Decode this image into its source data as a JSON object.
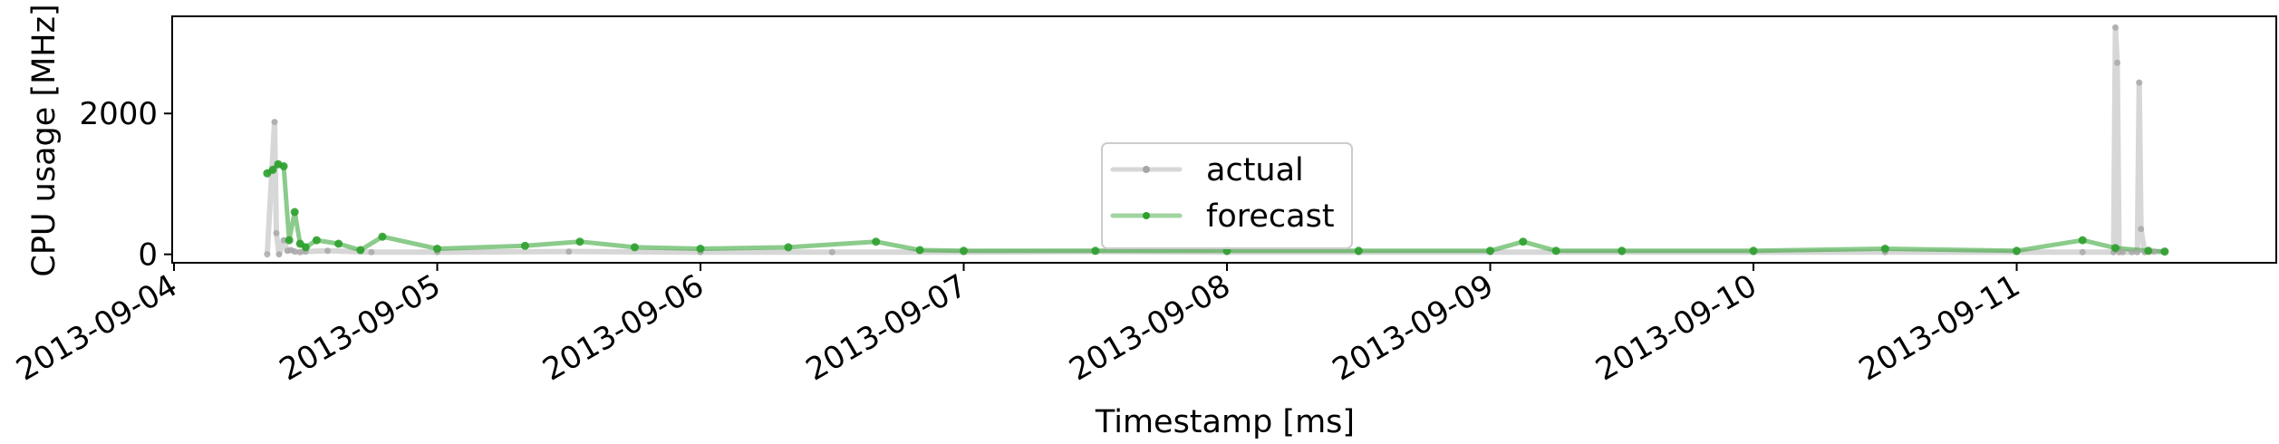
{
  "chart_data": {
    "type": "line",
    "title": "",
    "xlabel": "Timestamp [ms]",
    "ylabel": "CPU usage [MHz]",
    "x_ticks": [
      "2013-09-04",
      "2013-09-05",
      "2013-09-06",
      "2013-09-07",
      "2013-09-08",
      "2013-09-09",
      "2013-09-10",
      "2013-09-11"
    ],
    "y_ticks": [
      "0",
      "2000"
    ],
    "xlim": [
      "2013-09-03 23:50",
      "2013-09-11 23:40"
    ],
    "ylim": [
      -120,
      3380
    ],
    "grid": false,
    "legend_position": "center",
    "series": [
      {
        "name": "actual",
        "color": "#a6a6a6",
        "x": [
          "2013-09-04 08:30",
          "2013-09-04 09:10",
          "2013-09-04 09:20",
          "2013-09-04 09:35",
          "2013-09-04 10:00",
          "2013-09-04 10:20",
          "2013-09-04 10:40",
          "2013-09-04 11:00",
          "2013-09-04 11:30",
          "2013-09-04 12:00",
          "2013-09-04 14:00",
          "2013-09-04 18:00",
          "2013-09-05 00:00",
          "2013-09-05 12:00",
          "2013-09-06 00:00",
          "2013-09-06 12:00",
          "2013-09-07 00:00",
          "2013-09-07 12:00",
          "2013-09-08 00:00",
          "2013-09-08 12:00",
          "2013-09-09 00:00",
          "2013-09-09 12:00",
          "2013-09-10 00:00",
          "2013-09-10 12:00",
          "2013-09-11 00:00",
          "2013-09-11 06:00",
          "2013-09-11 08:50",
          "2013-09-11 09:00",
          "2013-09-11 09:10",
          "2013-09-11 09:20",
          "2013-09-11 09:40",
          "2013-09-11 10:30",
          "2013-09-11 11:00",
          "2013-09-11 11:10",
          "2013-09-11 11:20",
          "2013-09-11 11:40",
          "2013-09-11 12:30",
          "2013-09-11 13:30"
        ],
        "values": [
          0,
          1880,
          300,
          0,
          200,
          50,
          60,
          40,
          30,
          40,
          50,
          30,
          30,
          40,
          30,
          30,
          30,
          40,
          30,
          30,
          30,
          30,
          30,
          30,
          30,
          30,
          30,
          3220,
          2720,
          30,
          30,
          30,
          30,
          2440,
          360,
          30,
          40,
          30
        ]
      },
      {
        "name": "forecast",
        "color": "#2ca02c",
        "x": [
          "2013-09-04 08:30",
          "2013-09-04 09:00",
          "2013-09-04 09:30",
          "2013-09-04 10:00",
          "2013-09-04 10:30",
          "2013-09-04 11:00",
          "2013-09-04 11:30",
          "2013-09-04 12:00",
          "2013-09-04 13:00",
          "2013-09-04 15:00",
          "2013-09-04 17:00",
          "2013-09-04 19:00",
          "2013-09-05 00:00",
          "2013-09-05 08:00",
          "2013-09-05 13:00",
          "2013-09-05 18:00",
          "2013-09-06 00:00",
          "2013-09-06 08:00",
          "2013-09-06 16:00",
          "2013-09-06 20:00",
          "2013-09-07 00:00",
          "2013-09-07 12:00",
          "2013-09-08 00:00",
          "2013-09-08 12:00",
          "2013-09-09 00:00",
          "2013-09-09 03:00",
          "2013-09-09 06:00",
          "2013-09-09 12:00",
          "2013-09-10 00:00",
          "2013-09-10 12:00",
          "2013-09-11 00:00",
          "2013-09-11 06:00",
          "2013-09-11 09:00",
          "2013-09-11 12:00",
          "2013-09-11 13:30"
        ],
        "values": [
          1150,
          1200,
          1280,
          1250,
          200,
          600,
          150,
          100,
          200,
          150,
          60,
          250,
          80,
          120,
          180,
          100,
          80,
          100,
          180,
          60,
          50,
          50,
          50,
          50,
          50,
          180,
          50,
          50,
          50,
          80,
          50,
          200,
          90,
          50,
          40
        ]
      }
    ]
  }
}
